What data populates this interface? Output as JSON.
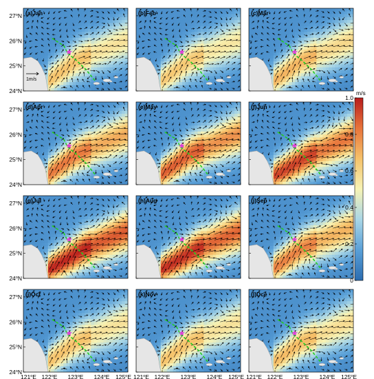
{
  "chart_data": {
    "type": "heatmap",
    "description_of_layers": [
      "speed-colored field",
      "velocity vectors",
      "section line",
      "star marker",
      "land mask"
    ],
    "panels": [
      {
        "title": "(a)Jan",
        "intensity": 0.62,
        "axis": "mid"
      },
      {
        "title": "(b)Feb",
        "intensity": 0.6,
        "axis": "mid"
      },
      {
        "title": "(c)Mar",
        "intensity": 0.66,
        "axis": "mid"
      },
      {
        "title": "(d)Apr",
        "intensity": 0.8,
        "axis": "mid"
      },
      {
        "title": "(e)May",
        "intensity": 0.86,
        "axis": "mid"
      },
      {
        "title": "(f)Jun",
        "intensity": 0.92,
        "axis": "north"
      },
      {
        "title": "(g)Jul",
        "intensity": 0.98,
        "axis": "north"
      },
      {
        "title": "(h)Aug",
        "intensity": 0.96,
        "axis": "north"
      },
      {
        "title": "(i)Sep",
        "intensity": 0.78,
        "axis": "mid"
      },
      {
        "title": "(j)Oct",
        "intensity": 0.62,
        "axis": "mid"
      },
      {
        "title": "(k)Nov",
        "intensity": 0.62,
        "axis": "mid"
      },
      {
        "title": "(l)Dce",
        "intensity": 0.64,
        "axis": "mid"
      }
    ],
    "y_ticks": [
      "24",
      "25",
      "26",
      "27"
    ],
    "y_suffix": "N",
    "x_ticks": [
      "121",
      "122",
      "123",
      "124",
      "125"
    ],
    "x_suffix": "E",
    "degree_symbol": "o",
    "xlim": [
      121,
      125
    ],
    "ylim": [
      24,
      27.3
    ],
    "colorbar": {
      "unit": "m/s",
      "ticks": [
        "0",
        "0.2",
        "0.4",
        "0.6",
        "0.8",
        "1.0"
      ],
      "range": [
        0,
        1.0
      ],
      "colors": [
        "#2b6cb0",
        "#5aa0d8",
        "#a9d6e6",
        "#f7f3b5",
        "#f6c26a",
        "#e8743b",
        "#b81c1c"
      ]
    },
    "reference_vector_label": "1m/s",
    "colors": {
      "section_line": "#22cc22",
      "star": "#e03fd8",
      "land": "#e6e6e6",
      "arrow": "#000000"
    }
  }
}
